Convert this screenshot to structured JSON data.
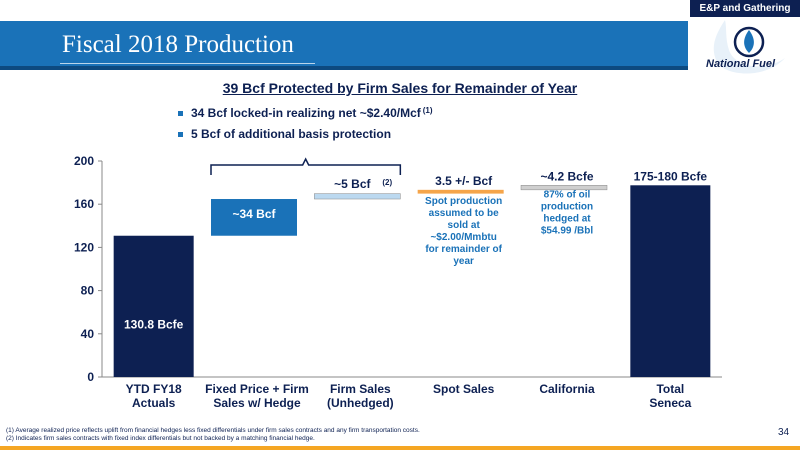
{
  "header": {
    "section_tag": "E&P and Gathering",
    "title": "Fiscal 2018 Production",
    "logo_text": "National Fuel"
  },
  "subheading": "39 Bcf Protected by Firm Sales for Remainder of Year",
  "bullets": [
    {
      "text": "34 Bcf locked-in realizing net ~$2.40/Mcf",
      "sup": "(1)"
    },
    {
      "text": "5 Bcf of additional basis protection",
      "sup": ""
    }
  ],
  "chart_data": {
    "type": "bar",
    "subtype": "waterfall",
    "ylim": [
      0,
      200
    ],
    "yticks": [
      0,
      40,
      80,
      120,
      160,
      200
    ],
    "categories": [
      "YTD FY18\nActuals",
      "Fixed Price + Firm\nSales w/ Hedge",
      "Firm Sales\n(Unhedged)",
      "Spot Sales",
      "California",
      "Total\nSeneca"
    ],
    "bars": [
      {
        "base": 0,
        "value": 130.8,
        "color": "#0d2052",
        "label": "130.8 Bcfe",
        "label_inside": true
      },
      {
        "base": 130.8,
        "value": 34,
        "color": "#1a72b8",
        "label": "~34 Bcf",
        "label_inside": true
      },
      {
        "base": 164.8,
        "value": 5,
        "color": "#bcd9f0",
        "label": "~5 Bcf",
        "label_sup": "(2)"
      },
      {
        "base": 169.8,
        "value": 3.5,
        "color": "#f5a54a",
        "label": "3.5 +/- Bcf"
      },
      {
        "base": 173.3,
        "value": 4.2,
        "color": "#cfcfcf",
        "label": "~4.2 Bcfe"
      },
      {
        "base": 0,
        "value": 177.5,
        "color": "#0d2052",
        "label": "175-180 Bcfe"
      }
    ],
    "annotations": [
      {
        "category_index": 3,
        "text": "Spot production\nassumed to be\nsold at\n~$2.00/Mmbtu\nfor remainder of\nyear"
      },
      {
        "category_index": 4,
        "text": "87% of oil\nproduction\nhedged at\n$54.99 /Bbl"
      }
    ],
    "bracket_over": [
      1,
      2
    ],
    "grid": false
  },
  "footnotes": [
    "(1)    Average realized price reflects uplift from financial hedges less fixed differentials under firm sales contracts and any firm transportation costs.",
    "(2)    Indicates firm sales contracts with fixed index differentials but not backed by a matching financial hedge."
  ],
  "page_number": "34",
  "colors": {
    "navy": "#0d2052",
    "blue": "#1a72b8",
    "orange": "#f5a623"
  }
}
